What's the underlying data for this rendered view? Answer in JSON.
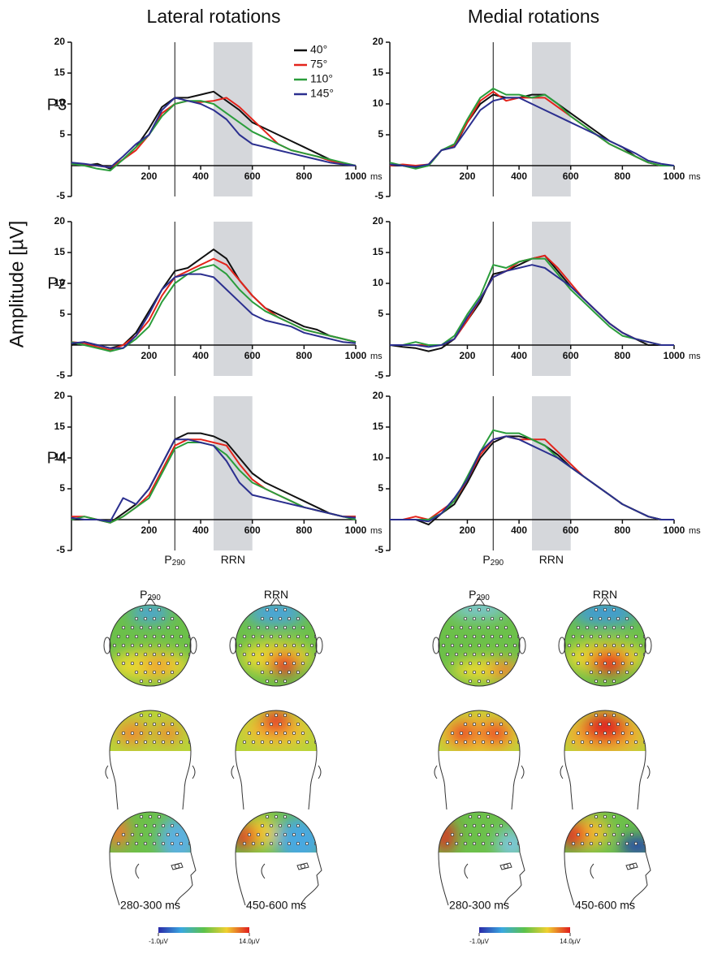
{
  "column_titles": [
    "Lateral rotations",
    "Medial rotations"
  ],
  "y_axis_label": "Amplitude [µV]",
  "row_labels": [
    "P3",
    "Pz",
    "P4"
  ],
  "chart_data": [
    {
      "type": "line",
      "xlim": [
        -100,
        1000
      ],
      "ylim": [
        -5,
        20
      ],
      "xticks": [
        200,
        400,
        600,
        800,
        1000
      ],
      "yticks": [
        -5,
        5,
        10,
        15,
        20
      ],
      "x_unit": "ms",
      "vline": 300,
      "shade": [
        450,
        600
      ],
      "legend": "upper right",
      "x": [
        -100,
        -50,
        0,
        50,
        100,
        150,
        200,
        250,
        300,
        350,
        400,
        450,
        500,
        550,
        600,
        650,
        700,
        750,
        800,
        850,
        900,
        950,
        1000
      ],
      "series": [
        {
          "name": "40°",
          "color": "#111111",
          "values": [
            0.5,
            0,
            0.3,
            -0.5,
            1,
            3,
            6,
            9.5,
            11,
            11,
            11.5,
            12,
            10.5,
            9,
            7,
            6,
            5,
            4,
            3,
            2,
            1,
            0.3,
            0
          ]
        },
        {
          "name": "75°",
          "color": "#e3241b",
          "values": [
            0.3,
            0.2,
            0,
            -0.3,
            1,
            2.5,
            5,
            8.5,
            10,
            10.5,
            10.3,
            10.5,
            11,
            9.5,
            7.5,
            5.5,
            3.5,
            2.5,
            2,
            1.5,
            0.8,
            0.3,
            0
          ]
        },
        {
          "name": "110°",
          "color": "#2a9d3b",
          "values": [
            0.3,
            0,
            -0.5,
            -0.8,
            1,
            3,
            5,
            8,
            10,
            10.5,
            10.5,
            10,
            8.5,
            7,
            5.5,
            4.5,
            3.5,
            2.5,
            2,
            1.5,
            1,
            0.5,
            0
          ]
        },
        {
          "name": "145°",
          "color": "#2b2f8f",
          "values": [
            0.5,
            0.3,
            0,
            -0.3,
            1.5,
            3.5,
            5,
            9,
            11,
            10.5,
            10,
            9,
            7.5,
            5,
            3.5,
            3,
            2.5,
            2,
            1.5,
            1,
            0.5,
            0.2,
            0
          ]
        }
      ]
    },
    {
      "type": "line",
      "xlim": [
        -100,
        1000
      ],
      "ylim": [
        -5,
        20
      ],
      "xticks": [
        200,
        400,
        600,
        800,
        1000
      ],
      "yticks": [
        -5,
        5,
        10,
        15,
        20
      ],
      "x_unit": "ms",
      "vline": 300,
      "shade": [
        450,
        600
      ],
      "x": [
        -100,
        -50,
        0,
        50,
        100,
        150,
        200,
        250,
        300,
        350,
        400,
        450,
        500,
        550,
        600,
        650,
        700,
        750,
        800,
        850,
        900,
        950,
        1000
      ],
      "series": [
        {
          "color": "#111111",
          "values": [
            0,
            0,
            -0.3,
            0,
            2.5,
            3,
            7,
            10,
            11.5,
            11,
            11,
            11.5,
            11.5,
            10,
            8.5,
            7,
            5.5,
            4,
            3,
            1.5,
            0.5,
            0,
            0
          ]
        },
        {
          "color": "#e3241b",
          "values": [
            0,
            0.2,
            0,
            0.2,
            2.5,
            3.3,
            7,
            10.5,
            12,
            10.5,
            11,
            11,
            11,
            9.5,
            8,
            6.5,
            5,
            3.5,
            2.5,
            1.5,
            0.5,
            0,
            0
          ]
        },
        {
          "color": "#2a9d3b",
          "values": [
            0.5,
            0,
            -0.5,
            0,
            2.5,
            3.5,
            7.5,
            11,
            12.5,
            11.5,
            11.5,
            11,
            11.5,
            10,
            8,
            6.5,
            5,
            3.5,
            2.5,
            1.5,
            0.5,
            0,
            0
          ]
        },
        {
          "color": "#2b2f8f",
          "values": [
            0.2,
            0,
            -0.2,
            0.2,
            2.5,
            3,
            6,
            9,
            10.5,
            11,
            11,
            10,
            9,
            8,
            7,
            6,
            5,
            4,
            3,
            2,
            0.8,
            0.3,
            0
          ]
        }
      ]
    },
    {
      "type": "line",
      "xlim": [
        -100,
        1000
      ],
      "ylim": [
        -5,
        20
      ],
      "xticks": [
        200,
        400,
        600,
        800,
        1000
      ],
      "yticks": [
        -5,
        5,
        10,
        15,
        20
      ],
      "x_unit": "ms",
      "vline": 300,
      "shade": [
        450,
        600
      ],
      "x": [
        -100,
        -50,
        0,
        50,
        100,
        150,
        200,
        250,
        300,
        350,
        400,
        450,
        500,
        550,
        600,
        650,
        700,
        750,
        800,
        850,
        900,
        950,
        1000
      ],
      "series": [
        {
          "color": "#111111",
          "values": [
            0,
            0.5,
            0,
            -0.5,
            0,
            2,
            5.5,
            9,
            12,
            12.5,
            14,
            15.5,
            14,
            10.5,
            8,
            6,
            5,
            4,
            3,
            2.5,
            1.5,
            1,
            0.5
          ]
        },
        {
          "color": "#e3241b",
          "values": [
            0.5,
            0.3,
            -0.3,
            -0.8,
            0,
            1.5,
            4,
            8,
            11,
            12,
            13,
            14,
            13,
            10.5,
            8,
            6,
            4.5,
            3.5,
            2.5,
            2,
            1.5,
            1,
            0.5
          ]
        },
        {
          "color": "#2a9d3b",
          "values": [
            0.5,
            0,
            -0.5,
            -1,
            -0.5,
            1,
            3,
            7,
            10,
            11.5,
            12.5,
            13,
            11.5,
            9,
            7,
            5.5,
            4.5,
            3.5,
            2.5,
            2,
            1.5,
            1,
            0.5
          ]
        },
        {
          "color": "#2b2f8f",
          "values": [
            0.3,
            0.5,
            0,
            -0.5,
            -0.5,
            1.5,
            5,
            9,
            11,
            11.5,
            11.5,
            11,
            9,
            7,
            5,
            4,
            3.5,
            3,
            2,
            1.5,
            1,
            0.5,
            0.3
          ]
        }
      ]
    },
    {
      "type": "line",
      "xlim": [
        -100,
        1000
      ],
      "ylim": [
        -5,
        20
      ],
      "xticks": [
        200,
        400,
        600,
        800,
        1000
      ],
      "yticks": [
        -5,
        5,
        10,
        15,
        20
      ],
      "x_unit": "ms",
      "vline": 300,
      "shade": [
        450,
        600
      ],
      "x": [
        -100,
        -50,
        0,
        50,
        100,
        150,
        200,
        250,
        300,
        350,
        400,
        450,
        500,
        550,
        600,
        650,
        700,
        750,
        800,
        850,
        900,
        950,
        1000
      ],
      "series": [
        {
          "color": "#111111",
          "values": [
            0,
            -0.3,
            -0.5,
            -1,
            -0.5,
            1,
            4,
            7,
            11.5,
            12,
            13,
            14,
            14.5,
            12,
            9.5,
            7.5,
            5.5,
            3.5,
            2,
            1,
            0,
            0,
            0
          ]
        },
        {
          "color": "#e3241b",
          "values": [
            0,
            0,
            0,
            0,
            0,
            1,
            4,
            7.5,
            11,
            12,
            13.5,
            14,
            14.5,
            12.5,
            10,
            7.5,
            5.5,
            3.5,
            2,
            1,
            0.5,
            0,
            0
          ]
        },
        {
          "color": "#2a9d3b",
          "values": [
            0,
            0,
            0.5,
            0,
            0,
            1.5,
            5,
            8,
            13,
            12.5,
            13.5,
            14,
            14,
            11.5,
            9,
            7,
            5,
            3,
            1.5,
            1,
            0.5,
            0,
            0
          ]
        },
        {
          "color": "#2b2f8f",
          "values": [
            0,
            0,
            0,
            -0.3,
            0,
            1,
            4.5,
            7.5,
            11,
            12,
            12.5,
            13,
            12.5,
            11,
            9.5,
            7.5,
            5.5,
            3.5,
            2,
            1,
            0.5,
            0,
            0
          ]
        }
      ]
    },
    {
      "type": "line",
      "xlim": [
        -100,
        1000
      ],
      "ylim": [
        -5,
        20
      ],
      "xticks": [
        200,
        400,
        600,
        800,
        1000
      ],
      "yticks": [
        -5,
        5,
        10,
        15,
        20
      ],
      "x_unit": "ms",
      "vline": 300,
      "shade": [
        450,
        600
      ],
      "annotations": [
        {
          "text": "P",
          "sub": "290"
        },
        {
          "text": "RRN"
        }
      ],
      "x": [
        -100,
        -50,
        0,
        50,
        100,
        150,
        200,
        250,
        300,
        350,
        400,
        450,
        500,
        550,
        600,
        650,
        700,
        750,
        800,
        850,
        900,
        950,
        1000
      ],
      "series": [
        {
          "color": "#111111",
          "values": [
            0,
            0,
            0,
            -0.5,
            1,
            2.5,
            5,
            9,
            13,
            14,
            14,
            13.5,
            12.5,
            10,
            7.5,
            6,
            5,
            4,
            3,
            2,
            1,
            0.5,
            0.5
          ]
        },
        {
          "color": "#e3241b",
          "values": [
            0.5,
            0.5,
            0,
            -0.5,
            0.5,
            2,
            4,
            8,
            12,
            13,
            13,
            12.5,
            12,
            9,
            6.5,
            5,
            4,
            3,
            2,
            1.5,
            1,
            0.5,
            0.5
          ]
        },
        {
          "color": "#2a9d3b",
          "values": [
            0,
            0.5,
            0,
            -0.5,
            0.5,
            2,
            3.5,
            7.5,
            11.5,
            12.5,
            12.5,
            12,
            10.5,
            8,
            6,
            5,
            4,
            3,
            2,
            1.5,
            1,
            0.5,
            0
          ]
        },
        {
          "color": "#2b2f8f",
          "values": [
            0.3,
            0,
            0,
            -0.3,
            3.5,
            2.5,
            5,
            9,
            13,
            13,
            12.5,
            12,
            9.5,
            6,
            4,
            3.5,
            3,
            2.5,
            2,
            1.5,
            1,
            0.5,
            0.3
          ]
        }
      ]
    },
    {
      "type": "line",
      "xlim": [
        -100,
        1000
      ],
      "ylim": [
        -5,
        20
      ],
      "xticks": [
        200,
        400,
        600,
        800,
        1000
      ],
      "yticks": [
        -5,
        5,
        10,
        15,
        20
      ],
      "x_unit": "ms",
      "vline": 300,
      "shade": [
        450,
        600
      ],
      "annotations": [
        {
          "text": "P",
          "sub": "290"
        },
        {
          "text": "RRN"
        }
      ],
      "x": [
        -100,
        -50,
        0,
        50,
        100,
        150,
        200,
        250,
        300,
        350,
        400,
        450,
        500,
        550,
        600,
        650,
        700,
        750,
        800,
        850,
        900,
        950,
        1000
      ],
      "series": [
        {
          "color": "#111111",
          "values": [
            0,
            0,
            0,
            -0.8,
            1,
            2.5,
            6,
            10,
            12.5,
            13.5,
            13.5,
            13,
            12,
            10.5,
            8.5,
            7,
            5.5,
            4,
            2.5,
            1.5,
            0.5,
            0,
            0
          ]
        },
        {
          "color": "#e3241b",
          "values": [
            0,
            0,
            0.5,
            0,
            1.5,
            3,
            6.5,
            10.5,
            13,
            13.5,
            13,
            13,
            13,
            11,
            9,
            7,
            5.5,
            4,
            2.5,
            1.5,
            0.5,
            0,
            0
          ]
        },
        {
          "color": "#2a9d3b",
          "values": [
            0,
            0,
            0,
            0,
            1,
            3,
            7,
            11,
            14.5,
            14,
            14,
            13,
            12,
            10,
            8.5,
            7,
            5.5,
            4,
            2.5,
            1.5,
            0.5,
            0,
            0
          ]
        },
        {
          "color": "#2b2f8f",
          "values": [
            0,
            0,
            0,
            -0.3,
            1,
            3.5,
            6.5,
            11,
            13,
            13.5,
            13,
            12,
            11,
            10,
            8.5,
            7,
            5.5,
            4,
            2.5,
            1.5,
            0.5,
            0,
            0
          ]
        }
      ]
    }
  ],
  "topomaps": [
    {
      "labels": [
        {
          "text": "P",
          "sub": "290"
        },
        {
          "text": "RRN"
        }
      ],
      "times": [
        "280-300 ms",
        "450-600 ms"
      ],
      "colorbar": {
        "lim": [
          -1,
          14
        ],
        "ticks": [
          {
            "value": -1,
            "label": "-1.0µV"
          },
          {
            "value": 14,
            "label": "14.0µV"
          }
        ]
      }
    },
    {
      "labels": [
        {
          "text": "P",
          "sub": "290"
        },
        {
          "text": "RRN"
        }
      ],
      "times": [
        "280-300 ms",
        "450-600 ms"
      ],
      "colorbar": {
        "lim": [
          -1,
          14
        ],
        "ticks": [
          {
            "value": -1,
            "label": "-1.0µV"
          },
          {
            "value": 14,
            "label": "14.0µV"
          }
        ]
      }
    }
  ]
}
